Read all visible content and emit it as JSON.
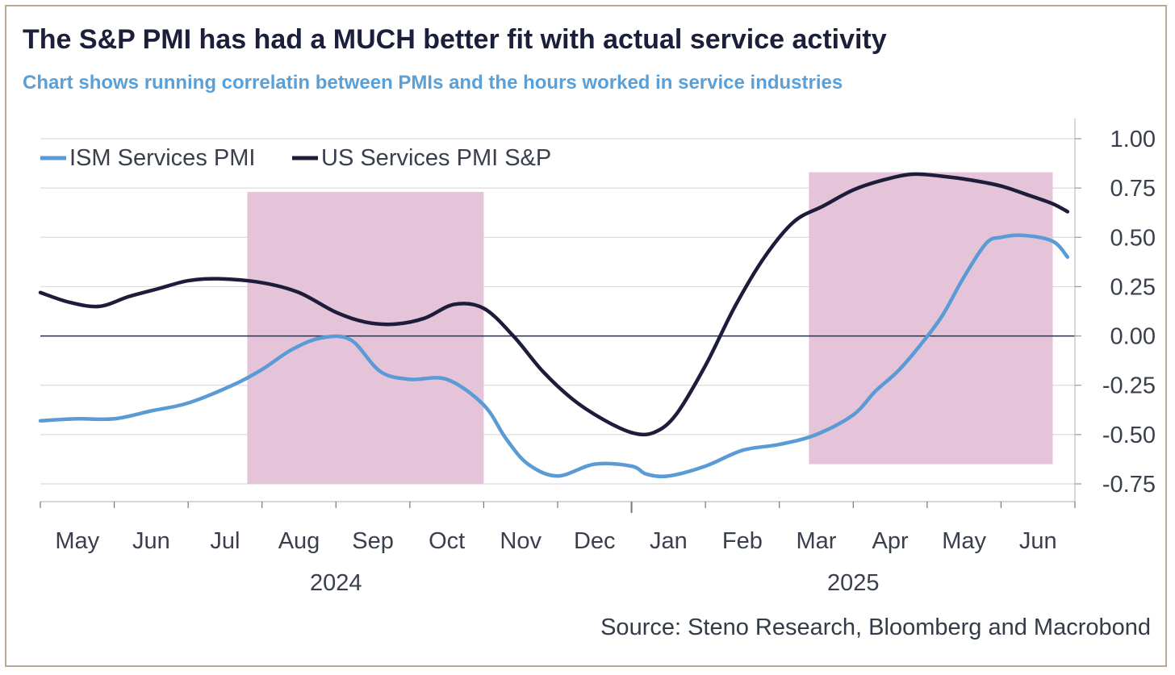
{
  "title": "The S&P PMI has had a MUCH better fit with actual service activity",
  "subtitle": "Chart shows running correlatin between PMIs and the hours worked in service industries",
  "source": "Source: Steno Research, Bloomberg and Macrobond",
  "colors": {
    "ism": "#5b9bd5",
    "sp": "#1d1d3b",
    "shade": "#e5c4da",
    "border": "#b7a98f",
    "title": "#1b1f3a",
    "subtitle": "#5aa0d8"
  },
  "chart_data": {
    "type": "line",
    "title": "The S&P PMI has had a MUCH better fit with actual service activity",
    "subtitle": "Chart shows running correlatin between PMIs and the hours worked in service industries",
    "ylim": [
      -0.75,
      1.0
    ],
    "yticks": [
      "1.00",
      "0.75",
      "0.50",
      "0.25",
      "0.00",
      "-0.25",
      "-0.50",
      "-0.75"
    ],
    "ytick_values": [
      1.0,
      0.75,
      0.5,
      0.25,
      0.0,
      -0.25,
      -0.5,
      -0.75
    ],
    "x_unit": "months since start of May 2024",
    "xlim": [
      0,
      14
    ],
    "month_labels": [
      "May",
      "Jun",
      "Jul",
      "Aug",
      "Sep",
      "Oct",
      "Nov",
      "Dec",
      "Jan",
      "Feb",
      "Mar",
      "Apr",
      "May",
      "Jun"
    ],
    "year_labels": [
      {
        "label": "2024",
        "x": 4
      },
      {
        "label": "2025",
        "x": 11
      }
    ],
    "legend": [
      "ISM Services PMI",
      "US Services PMI S&P"
    ],
    "legend_position": "top-left",
    "shaded_regions": [
      {
        "x0": 2.8,
        "x1": 6.0,
        "y0": -0.75,
        "y1": 0.73
      },
      {
        "x0": 10.4,
        "x1": 13.7,
        "y0": -0.65,
        "y1": 0.83
      }
    ],
    "series": [
      {
        "name": "ISM Services PMI",
        "x": [
          0.0,
          0.5,
          1.0,
          1.5,
          2.0,
          2.6,
          3.0,
          3.4,
          3.8,
          4.2,
          4.6,
          5.0,
          5.5,
          6.0,
          6.3,
          6.6,
          7.0,
          7.5,
          8.0,
          8.2,
          8.5,
          9.0,
          9.5,
          10.0,
          10.5,
          11.0,
          11.3,
          11.6,
          11.9,
          12.2,
          12.5,
          12.8,
          13.0,
          13.3,
          13.7,
          13.9
        ],
        "values": [
          -0.43,
          -0.42,
          -0.42,
          -0.38,
          -0.34,
          -0.25,
          -0.17,
          -0.07,
          -0.01,
          -0.02,
          -0.18,
          -0.22,
          -0.22,
          -0.35,
          -0.52,
          -0.65,
          -0.71,
          -0.65,
          -0.66,
          -0.7,
          -0.71,
          -0.66,
          -0.58,
          -0.55,
          -0.5,
          -0.4,
          -0.28,
          -0.18,
          -0.05,
          0.1,
          0.3,
          0.47,
          0.5,
          0.51,
          0.48,
          0.4
        ]
      },
      {
        "name": "US Services PMI S&P",
        "x": [
          0.0,
          0.4,
          0.8,
          1.2,
          1.6,
          2.0,
          2.4,
          3.0,
          3.5,
          4.0,
          4.4,
          4.8,
          5.2,
          5.6,
          6.0,
          6.4,
          6.8,
          7.2,
          7.6,
          8.0,
          8.3,
          8.6,
          9.0,
          9.4,
          9.8,
          10.2,
          10.6,
          11.0,
          11.4,
          11.8,
          12.2,
          12.6,
          13.0,
          13.4,
          13.7,
          13.9
        ],
        "values": [
          0.22,
          0.17,
          0.15,
          0.2,
          0.24,
          0.28,
          0.29,
          0.27,
          0.22,
          0.12,
          0.07,
          0.06,
          0.09,
          0.16,
          0.14,
          0.0,
          -0.18,
          -0.32,
          -0.42,
          -0.49,
          -0.49,
          -0.4,
          -0.15,
          0.15,
          0.4,
          0.58,
          0.66,
          0.74,
          0.79,
          0.82,
          0.81,
          0.79,
          0.76,
          0.71,
          0.67,
          0.63
        ]
      }
    ]
  }
}
